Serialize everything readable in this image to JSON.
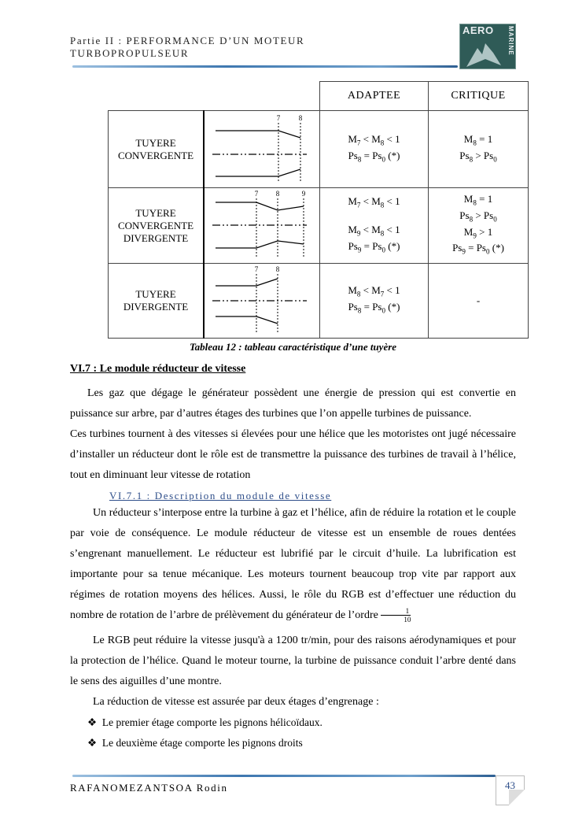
{
  "header": {
    "title_line1": "Partie II : PERFORMANCE D’UN MOTEUR",
    "title_line2": "TURBOPROPULSEUR",
    "logo_text": "AERO MARINE"
  },
  "table": {
    "columns": [
      "ADAPTEE",
      "CRITIQUE"
    ],
    "rows": [
      {
        "name": [
          "TUYERE",
          "CONVERGENTE"
        ],
        "stations": [
          "7",
          "8"
        ],
        "adaptee": [
          [
            [
              "M",
              "7"
            ],
            [
              " < M",
              "8"
            ],
            [
              " < 1",
              ""
            ]
          ],
          [
            [
              "Ps",
              "8"
            ],
            [
              " = Ps",
              "0"
            ],
            [
              " (*)",
              ""
            ]
          ]
        ],
        "critique": [
          [
            [
              "M",
              "8"
            ],
            [
              " = 1",
              ""
            ]
          ],
          [
            [
              "Ps",
              "8"
            ],
            [
              " > Ps",
              "0"
            ]
          ]
        ]
      },
      {
        "name": [
          "TUYERE",
          "CONVERGENTE",
          "DIVERGENTE"
        ],
        "stations": [
          "7",
          "8",
          "9"
        ],
        "adaptee": [
          [
            [
              "M",
              "7"
            ],
            [
              " < M",
              "8"
            ],
            [
              " < 1",
              ""
            ]
          ],
          [
            [
              "",
              ""
            ]
          ],
          [
            [
              "M",
              "9"
            ],
            [
              " < M",
              "8"
            ],
            [
              " < 1",
              ""
            ]
          ],
          [
            [
              "Ps",
              "9"
            ],
            [
              " = Ps",
              "0"
            ],
            [
              " (*)",
              ""
            ]
          ]
        ],
        "critique": [
          [
            [
              "M",
              "8"
            ],
            [
              " = 1",
              ""
            ]
          ],
          [
            [
              "Ps",
              "8"
            ],
            [
              " > Ps",
              "0"
            ]
          ],
          [
            [
              "M",
              "9"
            ],
            [
              " > 1",
              ""
            ]
          ],
          [
            [
              "Ps",
              "9"
            ],
            [
              " = Ps",
              "0"
            ],
            [
              " (*)",
              ""
            ]
          ]
        ]
      },
      {
        "name": [
          "TUYERE",
          "DIVERGENTE"
        ],
        "stations": [
          "7",
          "8"
        ],
        "adaptee": [
          [
            [
              "M",
              "8"
            ],
            [
              " < M",
              "7"
            ],
            [
              " < 1",
              ""
            ]
          ],
          [
            [
              "Ps",
              "8"
            ],
            [
              " = Ps",
              "0"
            ],
            [
              " (*)",
              ""
            ]
          ]
        ],
        "critique": [
          [
            [
              "-",
              ""
            ]
          ]
        ]
      }
    ],
    "caption": "Tableau 12 : tableau caractéristique d’une tuyère"
  },
  "section": {
    "title": "VI.7 : Le module réducteur de vitesse",
    "para1": "Les gaz que dégage le générateur possèdent une énergie de pression qui est convertie en puissance sur arbre, par d’autres étages des turbines que l’on appelle turbines de puissance.",
    "para2": "Ces turbines tournent à des vitesses si élevées pour une hélice que les motoristes ont jugé nécessaire d’installer un réducteur dont le rôle est de transmettre la puissance des turbines de travail à l’hélice, tout en diminuant leur vitesse de rotation"
  },
  "subsection": {
    "title": "VI.7.1 :   Description du module de vitesse",
    "para1": "Un réducteur s’interpose entre la turbine à gaz et l’hélice, afin de réduire la rotation et le couple par voie de conséquence. Le module réducteur de vitesse est un ensemble de roues dentées s’engrenant manuellement. Le réducteur est lubrifié par le circuit d’huile. La lubrification est importante pour sa tenue mécanique. Les moteurs tournent beaucoup trop vite par rapport aux régimes de rotation moyens des hélices. Aussi, le rôle du RGB est d’effectuer une réduction du nombre de rotation de l’arbre de prélèvement du générateur de l’ordre",
    "fraction": {
      "numerator": "1",
      "denominator": "10"
    },
    "para2": "Le RGB peut réduire la vitesse jusqu'à a 1200 tr/min, pour des raisons aérodynamiques et pour la protection de l’hélice. Quand le moteur tourne, la turbine de puissance conduit l’arbre denté dans le sens des aiguilles d’une montre.",
    "para3": "La réduction de vitesse est assurée par deux étages d’engrenage :",
    "bullets": [
      "Le premier étage comporte les pignons hélicoïdaux.",
      "Le deuxième étage comporte les pignons droits"
    ],
    "bullet_icon": "diamond-cross-bullet"
  },
  "footer": {
    "author": "RAFANOMEZANTSOA Rodin",
    "page_number": "43"
  }
}
